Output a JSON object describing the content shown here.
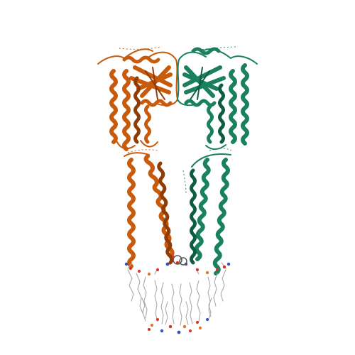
{
  "image": {
    "subject": "protein-dimer-ribbon-model",
    "background": "#ffffff"
  },
  "colors": {
    "chain_a": "#c85a0c",
    "chain_a_dark": "#8f3c05",
    "chain_b": "#1b8060",
    "chain_b_dark": "#0f5c44",
    "lipid": "#a9a9a9",
    "oxygen": "#d9302a",
    "nitrogen": "#3b4fb8",
    "phosphorus": "#e0792a"
  }
}
